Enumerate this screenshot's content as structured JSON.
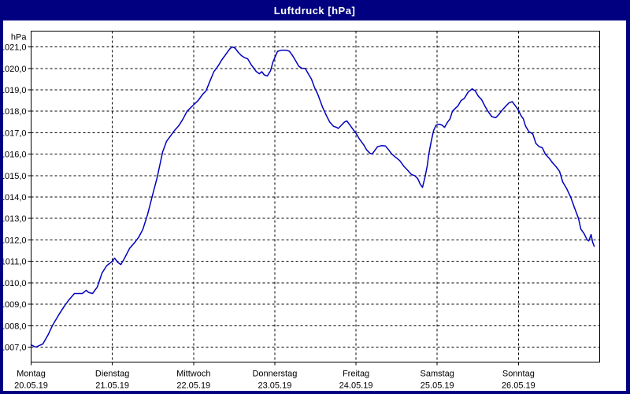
{
  "window": {
    "title": "Luftdruck [hPa]",
    "title_bar_color": "#000080",
    "border_color": "#000080",
    "title_text_color": "#ffffff",
    "background_color": "#ffffff"
  },
  "chart_data": {
    "type": "line",
    "title": "Luftdruck [hPa]",
    "ylabel": "hPa",
    "xlabel": "",
    "grid": true,
    "legend": "none",
    "line_color": "#0000bf",
    "grid_color": "#000000",
    "y_axis": {
      "unit_label": "hPa",
      "tick_labels": [
        "1021,0",
        "1020,0",
        "1019,0",
        "1018,0",
        "1017,0",
        "1016,0",
        "1015,0",
        "1014,0",
        "1013,0",
        "1012,0",
        "1011,0",
        "1010,0",
        "1009,0",
        "1008,0",
        "1007,0"
      ],
      "tick_values": [
        1021,
        1020,
        1019,
        1018,
        1017,
        1016,
        1015,
        1014,
        1013,
        1012,
        1011,
        1010,
        1009,
        1008,
        1007
      ],
      "ylim": [
        1006.3,
        1021.74
      ]
    },
    "x_axis": {
      "xlim_days": [
        0,
        7
      ],
      "days": [
        {
          "name": "Montag",
          "date": "20.05.19"
        },
        {
          "name": "Dienstag",
          "date": "21.05.19"
        },
        {
          "name": "Mittwoch",
          "date": "22.05.19"
        },
        {
          "name": "Donnerstag",
          "date": "23.05.19"
        },
        {
          "name": "Freitag",
          "date": "24.05.19"
        },
        {
          "name": "Samstag",
          "date": "25.05.19"
        },
        {
          "name": "Sonntag",
          "date": "26.05.19"
        }
      ]
    },
    "series": [
      {
        "name": "Luftdruck",
        "color": "#0000bf",
        "points": [
          [
            0.0,
            1007.1
          ],
          [
            0.058,
            1007.0
          ],
          [
            0.145,
            1007.15
          ],
          [
            0.213,
            1007.6
          ],
          [
            0.262,
            1008.0
          ],
          [
            0.339,
            1008.5
          ],
          [
            0.407,
            1008.9
          ],
          [
            0.465,
            1009.2
          ],
          [
            0.533,
            1009.5
          ],
          [
            0.63,
            1009.5
          ],
          [
            0.679,
            1009.65
          ],
          [
            0.708,
            1009.55
          ],
          [
            0.756,
            1009.5
          ],
          [
            0.814,
            1009.8
          ],
          [
            0.873,
            1010.45
          ],
          [
            0.931,
            1010.8
          ],
          [
            1.0,
            1011.0
          ],
          [
            1.028,
            1011.15
          ],
          [
            1.067,
            1010.95
          ],
          [
            1.105,
            1010.85
          ],
          [
            1.144,
            1011.1
          ],
          [
            1.212,
            1011.6
          ],
          [
            1.28,
            1011.9
          ],
          [
            1.328,
            1012.15
          ],
          [
            1.377,
            1012.5
          ],
          [
            1.435,
            1013.2
          ],
          [
            1.503,
            1014.2
          ],
          [
            1.551,
            1014.9
          ],
          [
            1.619,
            1016.1
          ],
          [
            1.668,
            1016.6
          ],
          [
            1.726,
            1016.9
          ],
          [
            1.765,
            1017.1
          ],
          [
            1.823,
            1017.35
          ],
          [
            1.871,
            1017.65
          ],
          [
            1.92,
            1018.0
          ],
          [
            2.0,
            1018.3
          ],
          [
            2.056,
            1018.5
          ],
          [
            2.114,
            1018.8
          ],
          [
            2.153,
            1018.95
          ],
          [
            2.201,
            1019.4
          ],
          [
            2.25,
            1019.85
          ],
          [
            2.308,
            1020.15
          ],
          [
            2.347,
            1020.4
          ],
          [
            2.405,
            1020.7
          ],
          [
            2.444,
            1020.9
          ],
          [
            2.472,
            1021.0
          ],
          [
            2.511,
            1020.95
          ],
          [
            2.55,
            1020.75
          ],
          [
            2.589,
            1020.6
          ],
          [
            2.628,
            1020.5
          ],
          [
            2.666,
            1020.45
          ],
          [
            2.705,
            1020.2
          ],
          [
            2.734,
            1020.05
          ],
          [
            2.773,
            1019.85
          ],
          [
            2.812,
            1019.75
          ],
          [
            2.841,
            1019.85
          ],
          [
            2.87,
            1019.7
          ],
          [
            2.909,
            1019.65
          ],
          [
            2.948,
            1019.9
          ],
          [
            2.977,
            1020.3
          ],
          [
            3.006,
            1020.55
          ],
          [
            3.035,
            1020.8
          ],
          [
            3.083,
            1020.85
          ],
          [
            3.141,
            1020.85
          ],
          [
            3.18,
            1020.8
          ],
          [
            3.219,
            1020.6
          ],
          [
            3.258,
            1020.35
          ],
          [
            3.296,
            1020.1
          ],
          [
            3.335,
            1020.0
          ],
          [
            3.374,
            1020.0
          ],
          [
            3.413,
            1019.75
          ],
          [
            3.452,
            1019.5
          ],
          [
            3.49,
            1019.1
          ],
          [
            3.529,
            1018.8
          ],
          [
            3.587,
            1018.2
          ],
          [
            3.636,
            1017.8
          ],
          [
            3.675,
            1017.5
          ],
          [
            3.723,
            1017.3
          ],
          [
            3.762,
            1017.25
          ],
          [
            3.781,
            1017.2
          ],
          [
            3.82,
            1017.35
          ],
          [
            3.859,
            1017.5
          ],
          [
            3.888,
            1017.55
          ],
          [
            3.927,
            1017.35
          ],
          [
            3.965,
            1017.15
          ],
          [
            3.995,
            1017.0
          ],
          [
            4.043,
            1016.7
          ],
          [
            4.092,
            1016.45
          ],
          [
            4.131,
            1016.2
          ],
          [
            4.169,
            1016.05
          ],
          [
            4.198,
            1016.0
          ],
          [
            4.237,
            1016.2
          ],
          [
            4.266,
            1016.35
          ],
          [
            4.315,
            1016.4
          ],
          [
            4.363,
            1016.38
          ],
          [
            4.402,
            1016.2
          ],
          [
            4.441,
            1016.0
          ],
          [
            4.489,
            1015.85
          ],
          [
            4.538,
            1015.7
          ],
          [
            4.586,
            1015.45
          ],
          [
            4.635,
            1015.25
          ],
          [
            4.683,
            1015.05
          ],
          [
            4.722,
            1015.0
          ],
          [
            4.761,
            1014.85
          ],
          [
            4.79,
            1014.6
          ],
          [
            4.819,
            1014.45
          ],
          [
            4.848,
            1014.9
          ],
          [
            4.877,
            1015.45
          ],
          [
            4.896,
            1016.0
          ],
          [
            4.926,
            1016.6
          ],
          [
            4.955,
            1017.1
          ],
          [
            4.984,
            1017.35
          ],
          [
            5.022,
            1017.4
          ],
          [
            5.061,
            1017.35
          ],
          [
            5.09,
            1017.25
          ],
          [
            5.129,
            1017.5
          ],
          [
            5.158,
            1017.65
          ],
          [
            5.187,
            1018.0
          ],
          [
            5.226,
            1018.15
          ],
          [
            5.255,
            1018.25
          ],
          [
            5.294,
            1018.5
          ],
          [
            5.333,
            1018.6
          ],
          [
            5.381,
            1018.9
          ],
          [
            5.43,
            1019.05
          ],
          [
            5.468,
            1018.95
          ],
          [
            5.507,
            1018.7
          ],
          [
            5.546,
            1018.55
          ],
          [
            5.585,
            1018.25
          ],
          [
            5.624,
            1018.0
          ],
          [
            5.672,
            1017.75
          ],
          [
            5.72,
            1017.7
          ],
          [
            5.759,
            1017.85
          ],
          [
            5.798,
            1018.05
          ],
          [
            5.847,
            1018.25
          ],
          [
            5.885,
            1018.4
          ],
          [
            5.924,
            1018.45
          ],
          [
            5.953,
            1018.3
          ],
          [
            5.992,
            1018.1
          ],
          [
            6.031,
            1017.8
          ],
          [
            6.06,
            1017.65
          ],
          [
            6.089,
            1017.3
          ],
          [
            6.128,
            1017.05
          ],
          [
            6.176,
            1016.95
          ],
          [
            6.215,
            1016.5
          ],
          [
            6.254,
            1016.35
          ],
          [
            6.293,
            1016.3
          ],
          [
            6.331,
            1016.0
          ],
          [
            6.38,
            1015.8
          ],
          [
            6.419,
            1015.6
          ],
          [
            6.467,
            1015.4
          ],
          [
            6.506,
            1015.2
          ],
          [
            6.545,
            1014.7
          ],
          [
            6.593,
            1014.4
          ],
          [
            6.642,
            1014.0
          ],
          [
            6.69,
            1013.5
          ],
          [
            6.739,
            1013.0
          ],
          [
            6.768,
            1012.5
          ],
          [
            6.807,
            1012.3
          ],
          [
            6.846,
            1012.0
          ],
          [
            6.865,
            1011.95
          ],
          [
            6.894,
            1012.25
          ],
          [
            6.913,
            1011.9
          ],
          [
            6.933,
            1011.7
          ]
        ]
      }
    ]
  }
}
